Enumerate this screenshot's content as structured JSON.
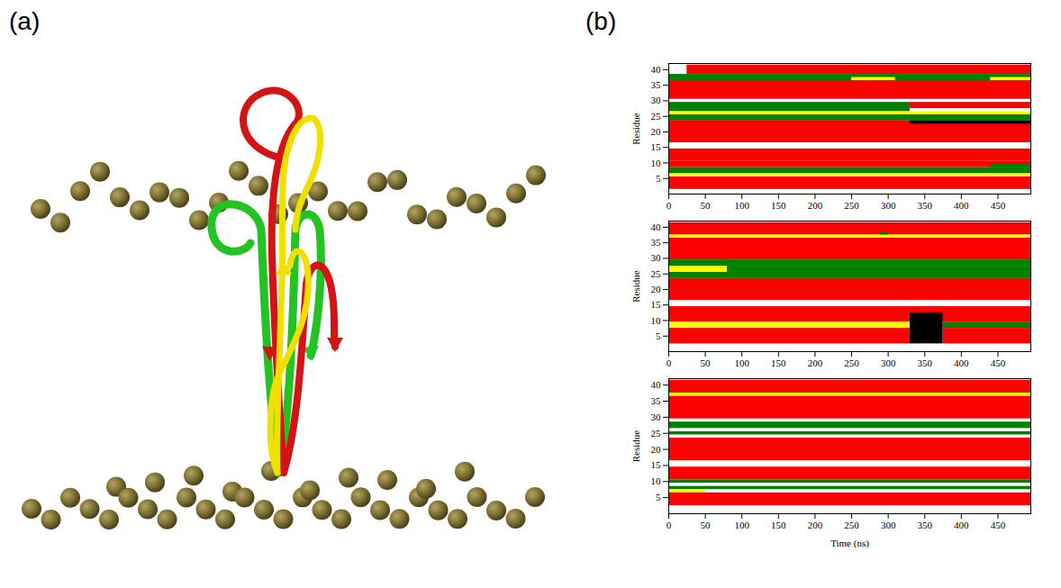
{
  "panel_labels": [
    "(a)",
    "(b)"
  ],
  "chart_data": [
    {
      "type": "heatmap",
      "ylabel": "Residue",
      "xlim": [
        0,
        495
      ],
      "xticks": [
        0,
        50,
        100,
        150,
        200,
        250,
        300,
        350,
        400,
        450
      ],
      "ylim": [
        0,
        42
      ],
      "yticks": [
        5,
        10,
        15,
        20,
        25,
        30,
        35,
        40
      ],
      "bands": [
        {
          "residues": [
            39,
            41
          ],
          "time": [
            25,
            495
          ],
          "color": "#ff0000"
        },
        {
          "residues": [
            37,
            38
          ],
          "time": [
            0,
            495
          ],
          "color": "#008000"
        },
        {
          "residues": [
            37,
            37
          ],
          "time": [
            250,
            310
          ],
          "color": "#ffff00"
        },
        {
          "residues": [
            37,
            37
          ],
          "time": [
            440,
            495
          ],
          "color": "#ffff00"
        },
        {
          "residues": [
            31,
            36
          ],
          "time": [
            0,
            495
          ],
          "color": "#ff0000"
        },
        {
          "residues": [
            28,
            29
          ],
          "time": [
            0,
            330
          ],
          "color": "#008000"
        },
        {
          "residues": [
            28,
            29
          ],
          "time": [
            330,
            495
          ],
          "color": "#ff0000"
        },
        {
          "residues": [
            27,
            27
          ],
          "time": [
            0,
            330
          ],
          "color": "#008000"
        },
        {
          "residues": [
            26,
            26
          ],
          "time": [
            0,
            495
          ],
          "color": "#ffff00"
        },
        {
          "residues": [
            24,
            25
          ],
          "time": [
            0,
            495
          ],
          "color": "#008000"
        },
        {
          "residues": [
            17,
            23
          ],
          "time": [
            0,
            495
          ],
          "color": "#ff0000"
        },
        {
          "residues": [
            23,
            23
          ],
          "time": [
            330,
            495
          ],
          "color": "#000000"
        },
        {
          "residues": [
            11,
            14
          ],
          "time": [
            0,
            495
          ],
          "color": "#ff0000"
        },
        {
          "residues": [
            9,
            10
          ],
          "time": [
            0,
            495
          ],
          "color": "#ff0000"
        },
        {
          "residues": [
            9,
            9
          ],
          "time": [
            440,
            495
          ],
          "color": "#008000"
        },
        {
          "residues": [
            7,
            8
          ],
          "time": [
            0,
            495
          ],
          "color": "#008000"
        },
        {
          "residues": [
            6,
            6
          ],
          "time": [
            0,
            495
          ],
          "color": "#ffff00"
        },
        {
          "residues": [
            2,
            5
          ],
          "time": [
            0,
            495
          ],
          "color": "#ff0000"
        }
      ]
    },
    {
      "type": "heatmap",
      "ylabel": "Residue",
      "xlim": [
        0,
        495
      ],
      "xticks": [
        0,
        50,
        100,
        150,
        200,
        250,
        300,
        350,
        400,
        450
      ],
      "ylim": [
        0,
        42
      ],
      "yticks": [
        5,
        10,
        15,
        20,
        25,
        30,
        35,
        40
      ],
      "bands": [
        {
          "residues": [
            38,
            41
          ],
          "time": [
            0,
            495
          ],
          "color": "#ff0000"
        },
        {
          "residues": [
            37,
            37
          ],
          "time": [
            0,
            495
          ],
          "color": "#ffff00"
        },
        {
          "residues": [
            38,
            38
          ],
          "time": [
            290,
            300
          ],
          "color": "#008000"
        },
        {
          "residues": [
            30,
            36
          ],
          "time": [
            0,
            495
          ],
          "color": "#ff0000"
        },
        {
          "residues": [
            28,
            29
          ],
          "time": [
            0,
            495
          ],
          "color": "#008000"
        },
        {
          "residues": [
            26,
            27
          ],
          "time": [
            0,
            80
          ],
          "color": "#ffff00"
        },
        {
          "residues": [
            26,
            27
          ],
          "time": [
            80,
            495
          ],
          "color": "#008000"
        },
        {
          "residues": [
            24,
            25
          ],
          "time": [
            0,
            495
          ],
          "color": "#008000"
        },
        {
          "residues": [
            17,
            23
          ],
          "time": [
            0,
            495
          ],
          "color": "#ff0000"
        },
        {
          "residues": [
            10,
            14
          ],
          "time": [
            0,
            495
          ],
          "color": "#ff0000"
        },
        {
          "residues": [
            8,
            9
          ],
          "time": [
            0,
            330
          ],
          "color": "#ffff00"
        },
        {
          "residues": [
            8,
            9
          ],
          "time": [
            375,
            495
          ],
          "color": "#008000"
        },
        {
          "residues": [
            3,
            7
          ],
          "time": [
            0,
            330
          ],
          "color": "#ff0000"
        },
        {
          "residues": [
            3,
            7
          ],
          "time": [
            375,
            495
          ],
          "color": "#ff0000"
        },
        {
          "residues": [
            3,
            12
          ],
          "time": [
            330,
            375
          ],
          "color": "#000000"
        }
      ]
    },
    {
      "type": "heatmap",
      "ylabel": "Residue",
      "xlabel": "Time (ns)",
      "xlim": [
        0,
        495
      ],
      "xticks": [
        0,
        50,
        100,
        150,
        200,
        250,
        300,
        350,
        400,
        450
      ],
      "ylim": [
        0,
        42
      ],
      "yticks": [
        5,
        10,
        15,
        20,
        25,
        30,
        35,
        40
      ],
      "bands": [
        {
          "residues": [
            38,
            41
          ],
          "time": [
            0,
            495
          ],
          "color": "#ff0000"
        },
        {
          "residues": [
            37,
            37
          ],
          "time": [
            0,
            495
          ],
          "color": "#ffff00"
        },
        {
          "residues": [
            30,
            36
          ],
          "time": [
            0,
            495
          ],
          "color": "#ff0000"
        },
        {
          "residues": [
            27,
            28
          ],
          "time": [
            0,
            495
          ],
          "color": "#008000"
        },
        {
          "residues": [
            25,
            25
          ],
          "time": [
            0,
            495
          ],
          "color": "#008000"
        },
        {
          "residues": [
            17,
            23
          ],
          "time": [
            0,
            495
          ],
          "color": "#ff0000"
        },
        {
          "residues": [
            11,
            14
          ],
          "time": [
            0,
            495
          ],
          "color": "#ff0000"
        },
        {
          "residues": [
            10,
            10
          ],
          "time": [
            0,
            495
          ],
          "color": "#008000"
        },
        {
          "residues": [
            8,
            8
          ],
          "time": [
            0,
            495
          ],
          "color": "#008000"
        },
        {
          "residues": [
            7,
            7
          ],
          "time": [
            0,
            50
          ],
          "color": "#ffff00"
        },
        {
          "residues": [
            3,
            6
          ],
          "time": [
            0,
            495
          ],
          "color": "#ff0000"
        }
      ]
    }
  ]
}
